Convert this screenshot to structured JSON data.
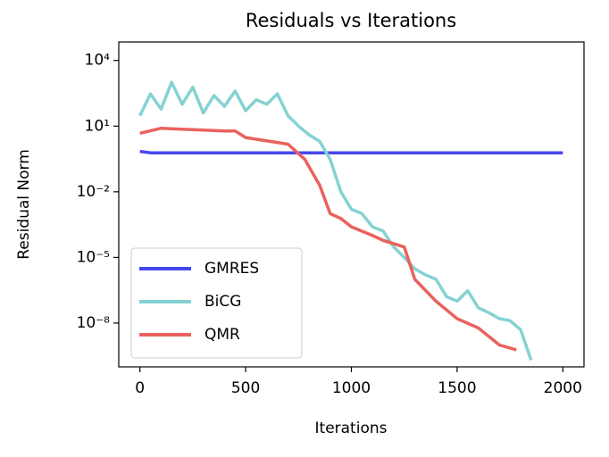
{
  "chart_data": {
    "type": "line",
    "title": "Residuals vs Iterations",
    "x_label": "Iterations",
    "y_label": "Residual Norm",
    "xlim": [
      -100,
      2100
    ],
    "xticks": [
      0,
      500,
      1000,
      1500,
      2000
    ],
    "ylim": [
      1e-10,
      70000
    ],
    "log_y": true,
    "yticks": [
      {
        "value": 10000,
        "label": "10⁴"
      },
      {
        "value": 10,
        "label": "10¹"
      },
      {
        "value": 0.01,
        "label": "10⁻²"
      },
      {
        "value": 1e-05,
        "label": "10⁻⁵"
      },
      {
        "value": 1e-08,
        "label": "10⁻⁸"
      }
    ],
    "legend": "lower left",
    "series": [
      {
        "name": "GMRES",
        "color": "#4646f0",
        "x": [
          0,
          50,
          2000
        ],
        "values": [
          0.7,
          0.6,
          0.6
        ]
      },
      {
        "name": "BiCG",
        "color": "#86d2d3",
        "x": [
          0,
          50,
          100,
          150,
          200,
          250,
          300,
          350,
          400,
          450,
          500,
          550,
          600,
          650,
          700,
          750,
          800,
          850,
          900,
          950,
          1000,
          1050,
          1100,
          1150,
          1200,
          1250,
          1300,
          1350,
          1400,
          1450,
          1500,
          1550,
          1600,
          1650,
          1700,
          1750,
          1800,
          1850
        ],
        "values": [
          30,
          300,
          60,
          1000,
          100,
          600,
          40,
          250,
          80,
          400,
          50,
          160,
          100,
          300,
          30,
          10,
          4,
          2,
          0.3,
          0.01,
          0.0016,
          0.001,
          0.00025,
          0.00016,
          3e-05,
          1e-05,
          3e-06,
          1.6e-06,
          1e-06,
          1.6e-07,
          1e-07,
          3e-07,
          5e-08,
          3e-08,
          1.6e-08,
          1.3e-08,
          5e-09,
          2e-10
        ]
      },
      {
        "name": "QMR",
        "color": "#e9625d",
        "x": [
          0,
          100,
          400,
          450,
          500,
          700,
          780,
          850,
          900,
          950,
          1000,
          1100,
          1150,
          1250,
          1300,
          1400,
          1500,
          1600,
          1700,
          1780
        ],
        "values": [
          4.7,
          8,
          6,
          6,
          3,
          1.5,
          0.3,
          0.02,
          0.001,
          0.0006,
          0.00025,
          0.0001,
          6e-05,
          3e-05,
          1e-06,
          1e-07,
          1.6e-08,
          6e-09,
          1e-09,
          6e-10
        ]
      }
    ]
  }
}
